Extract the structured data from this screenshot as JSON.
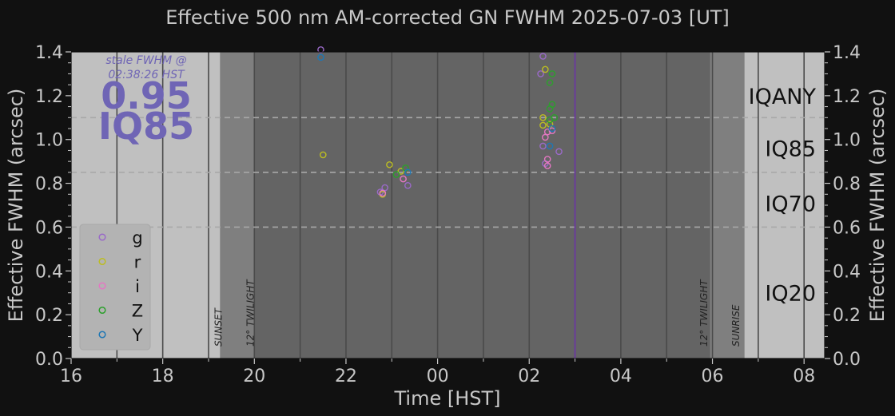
{
  "chart_data": {
    "type": "scatter",
    "title": "Effective 500 nm AM-corrected GN FWHM 2025-07-03 [UT]",
    "xlabel": "Time [HST]",
    "ylabel": "Effective FWHM (arcsec)",
    "ylabel_right": "Effective FWHM (arcsec)",
    "xlim": [
      16,
      32.45
    ],
    "ylim": [
      0,
      1.4
    ],
    "x_tick_values": [
      16,
      18,
      20,
      22,
      24,
      26,
      28,
      30,
      32
    ],
    "x_tick_labels": [
      "16",
      "18",
      "20",
      "22",
      "00",
      "02",
      "04",
      "06",
      "08"
    ],
    "y_ticks": [
      "0.0",
      "0.2",
      "0.4",
      "0.6",
      "0.8",
      "1.0",
      "1.2",
      "1.4"
    ],
    "grid": true,
    "legend_position": "bottom-left",
    "thresholds": [
      {
        "name": "IQ70",
        "value": 0.6
      },
      {
        "name": "IQ85",
        "value": 0.85
      },
      {
        "name": "IQANY",
        "value": 1.1
      }
    ],
    "band_labels": [
      {
        "text": "IQANY",
        "y": 1.2
      },
      {
        "text": "IQ85",
        "y": 0.96
      },
      {
        "text": "IQ70",
        "y": 0.71
      },
      {
        "text": "IQ20",
        "y": 0.3
      }
    ],
    "events": [
      {
        "label": "SUNSET",
        "x": 19.25
      },
      {
        "label": "12° TWILIGHT",
        "x": 19.95
      },
      {
        "label": "12° TWILIGHT",
        "x": 29.85
      },
      {
        "label": "SUNRISE",
        "x": 30.55
      }
    ],
    "twilight_start": 19.25,
    "night_start": 20.0,
    "night_end": 29.95,
    "twilight_end": 30.7,
    "current_time": 27.0,
    "stale": {
      "line1": "stale FWHM @",
      "line2": "02:38:26 HST",
      "value": "0.95",
      "band": "IQ85"
    },
    "series": [
      {
        "name": "g",
        "color": "#9a6ac8",
        "points": [
          [
            21.45,
            1.41
          ],
          [
            22.85,
            0.78
          ],
          [
            23.35,
            0.79
          ],
          [
            22.75,
            0.76
          ],
          [
            26.3,
            1.38
          ],
          [
            26.3,
            0.97
          ],
          [
            26.35,
            0.89
          ],
          [
            26.65,
            0.945
          ],
          [
            26.25,
            1.3
          ]
        ]
      },
      {
        "name": "r",
        "color": "#bcbd22",
        "points": [
          [
            21.5,
            0.93
          ],
          [
            22.95,
            0.885
          ],
          [
            22.8,
            0.75
          ],
          [
            23.2,
            0.855
          ],
          [
            26.35,
            1.32
          ],
          [
            26.3,
            1.1
          ],
          [
            26.3,
            1.065
          ],
          [
            26.45,
            1.07
          ]
        ]
      },
      {
        "name": "i",
        "color": "#e377c2",
        "points": [
          [
            22.8,
            0.755
          ],
          [
            23.25,
            0.82
          ],
          [
            26.35,
            1.01
          ],
          [
            26.4,
            1.035
          ],
          [
            26.4,
            0.91
          ],
          [
            26.4,
            0.88
          ],
          [
            26.5,
            1.04
          ]
        ]
      },
      {
        "name": "Z",
        "color": "#2ca02c",
        "points": [
          [
            23.1,
            0.84
          ],
          [
            23.3,
            0.87
          ],
          [
            26.45,
            1.26
          ],
          [
            26.5,
            1.3
          ],
          [
            26.5,
            1.16
          ],
          [
            26.45,
            1.14
          ],
          [
            26.45,
            1.09
          ],
          [
            26.55,
            1.1
          ]
        ]
      },
      {
        "name": "Y",
        "color": "#1f77b4",
        "points": [
          [
            21.45,
            1.375
          ],
          [
            23.35,
            0.85
          ],
          [
            26.5,
            1.05
          ],
          [
            26.45,
            0.97
          ]
        ]
      }
    ]
  }
}
